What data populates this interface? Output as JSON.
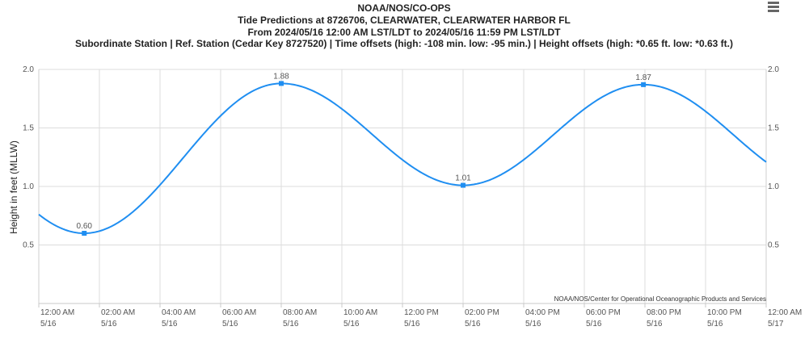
{
  "titles": [
    "NOAA/NOS/CO-OPS",
    "Tide Predictions at 8726706, CLEARWATER, CLEARWATER HARBOR FL",
    "From 2024/05/16 12:00 AM LST/LDT to 2024/05/16 11:59 PM LST/LDT",
    "Subordinate Station | Ref. Station (Cedar Key 8727520) | Time offsets (high: -108 min. low: -95 min.) | Height offsets (high: *0.65 ft. low: *0.63 ft.)"
  ],
  "credit": "NOAA/NOS/Center for Operational Oceanographic Products and Services",
  "menu_icon": "hamburger-menu-icon",
  "chart_data": {
    "type": "line",
    "ylabel": "Height in feet (MLLW)",
    "ylim": [
      0,
      2
    ],
    "yticks": [
      0.5,
      1.0,
      1.5,
      2.0
    ],
    "ytick_labels": [
      "0.5",
      "1.0",
      "1.5",
      "2.0"
    ],
    "xlim_hours": [
      0,
      24
    ],
    "xtick_hours": [
      0,
      2,
      4,
      6,
      8,
      10,
      12,
      14,
      16,
      18,
      20,
      22,
      24
    ],
    "xtick_labels": [
      [
        "12:00 AM",
        "5/16"
      ],
      [
        "02:00 AM",
        "5/16"
      ],
      [
        "04:00 AM",
        "5/16"
      ],
      [
        "06:00 AM",
        "5/16"
      ],
      [
        "08:00 AM",
        "5/16"
      ],
      [
        "10:00 AM",
        "5/16"
      ],
      [
        "12:00 PM",
        "5/16"
      ],
      [
        "02:00 PM",
        "5/16"
      ],
      [
        "04:00 PM",
        "5/16"
      ],
      [
        "06:00 PM",
        "5/16"
      ],
      [
        "08:00 PM",
        "5/16"
      ],
      [
        "10:00 PM",
        "5/16"
      ],
      [
        "12:00 AM",
        "5/17"
      ]
    ],
    "grid": true,
    "line_color": "#1f8ef1",
    "extrema": [
      {
        "hour": 1.5,
        "value": 0.6,
        "label": "0.60"
      },
      {
        "hour": 8.0,
        "value": 1.88,
        "label": "1.88"
      },
      {
        "hour": 14.0,
        "value": 1.01,
        "label": "1.01"
      },
      {
        "hour": 19.95,
        "value": 1.87,
        "label": "1.87"
      }
    ],
    "start_value": 0.72,
    "end_value": 1.04
  }
}
